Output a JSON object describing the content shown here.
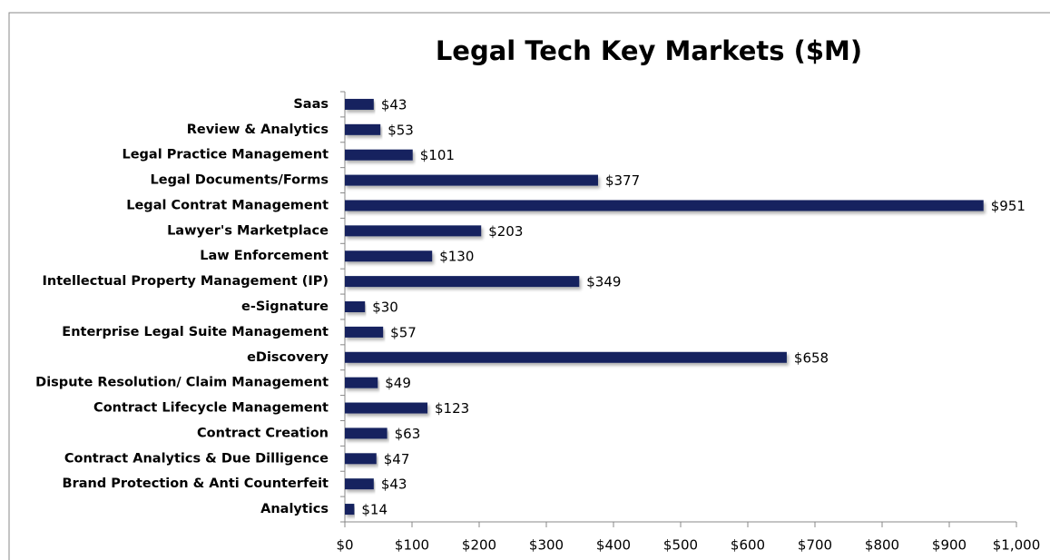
{
  "chart_data": {
    "type": "bar",
    "orientation": "horizontal",
    "title": "Legal Tech Key Markets ($M)",
    "categories": [
      "Saas",
      "Review & Analytics",
      "Legal Practice Management",
      "Legal Documents/Forms",
      "Legal Contrat Management",
      "Lawyer's Marketplace",
      "Law Enforcement",
      "Intellectual Property Management (IP)",
      "e-Signature",
      "Enterprise Legal Suite Management",
      "eDiscovery",
      "Dispute Resolution/ Claim Management",
      "Contract Lifecycle Management",
      "Contract Creation",
      "Contract Analytics & Due Dilligence",
      "Brand Protection & Anti Counterfeit",
      "Analytics"
    ],
    "values": [
      43,
      53,
      101,
      377,
      951,
      203,
      130,
      349,
      30,
      57,
      658,
      49,
      123,
      63,
      47,
      43,
      14
    ],
    "value_labels": [
      "$43",
      "$53",
      "$101",
      "$377",
      "$951",
      "$203",
      "$130",
      "$349",
      "$30",
      "$57",
      "$658",
      "$49",
      "$123",
      "$63",
      "$47",
      "$43",
      "$14"
    ],
    "color": "#13235e",
    "xlim": [
      0,
      1000
    ],
    "xticks": [
      {
        "value": 0,
        "label": "$0"
      },
      {
        "value": 100,
        "label": "$100"
      },
      {
        "value": 200,
        "label": "$200"
      },
      {
        "value": 300,
        "label": "$300"
      },
      {
        "value": 400,
        "label": "$400"
      },
      {
        "value": 500,
        "label": "$500"
      },
      {
        "value": 600,
        "label": "$600"
      },
      {
        "value": 700,
        "label": "$700"
      },
      {
        "value": 800,
        "label": "$800"
      },
      {
        "value": 900,
        "label": "$900"
      },
      {
        "value": 1000,
        "label": "$1,000"
      }
    ],
    "grid": false
  }
}
